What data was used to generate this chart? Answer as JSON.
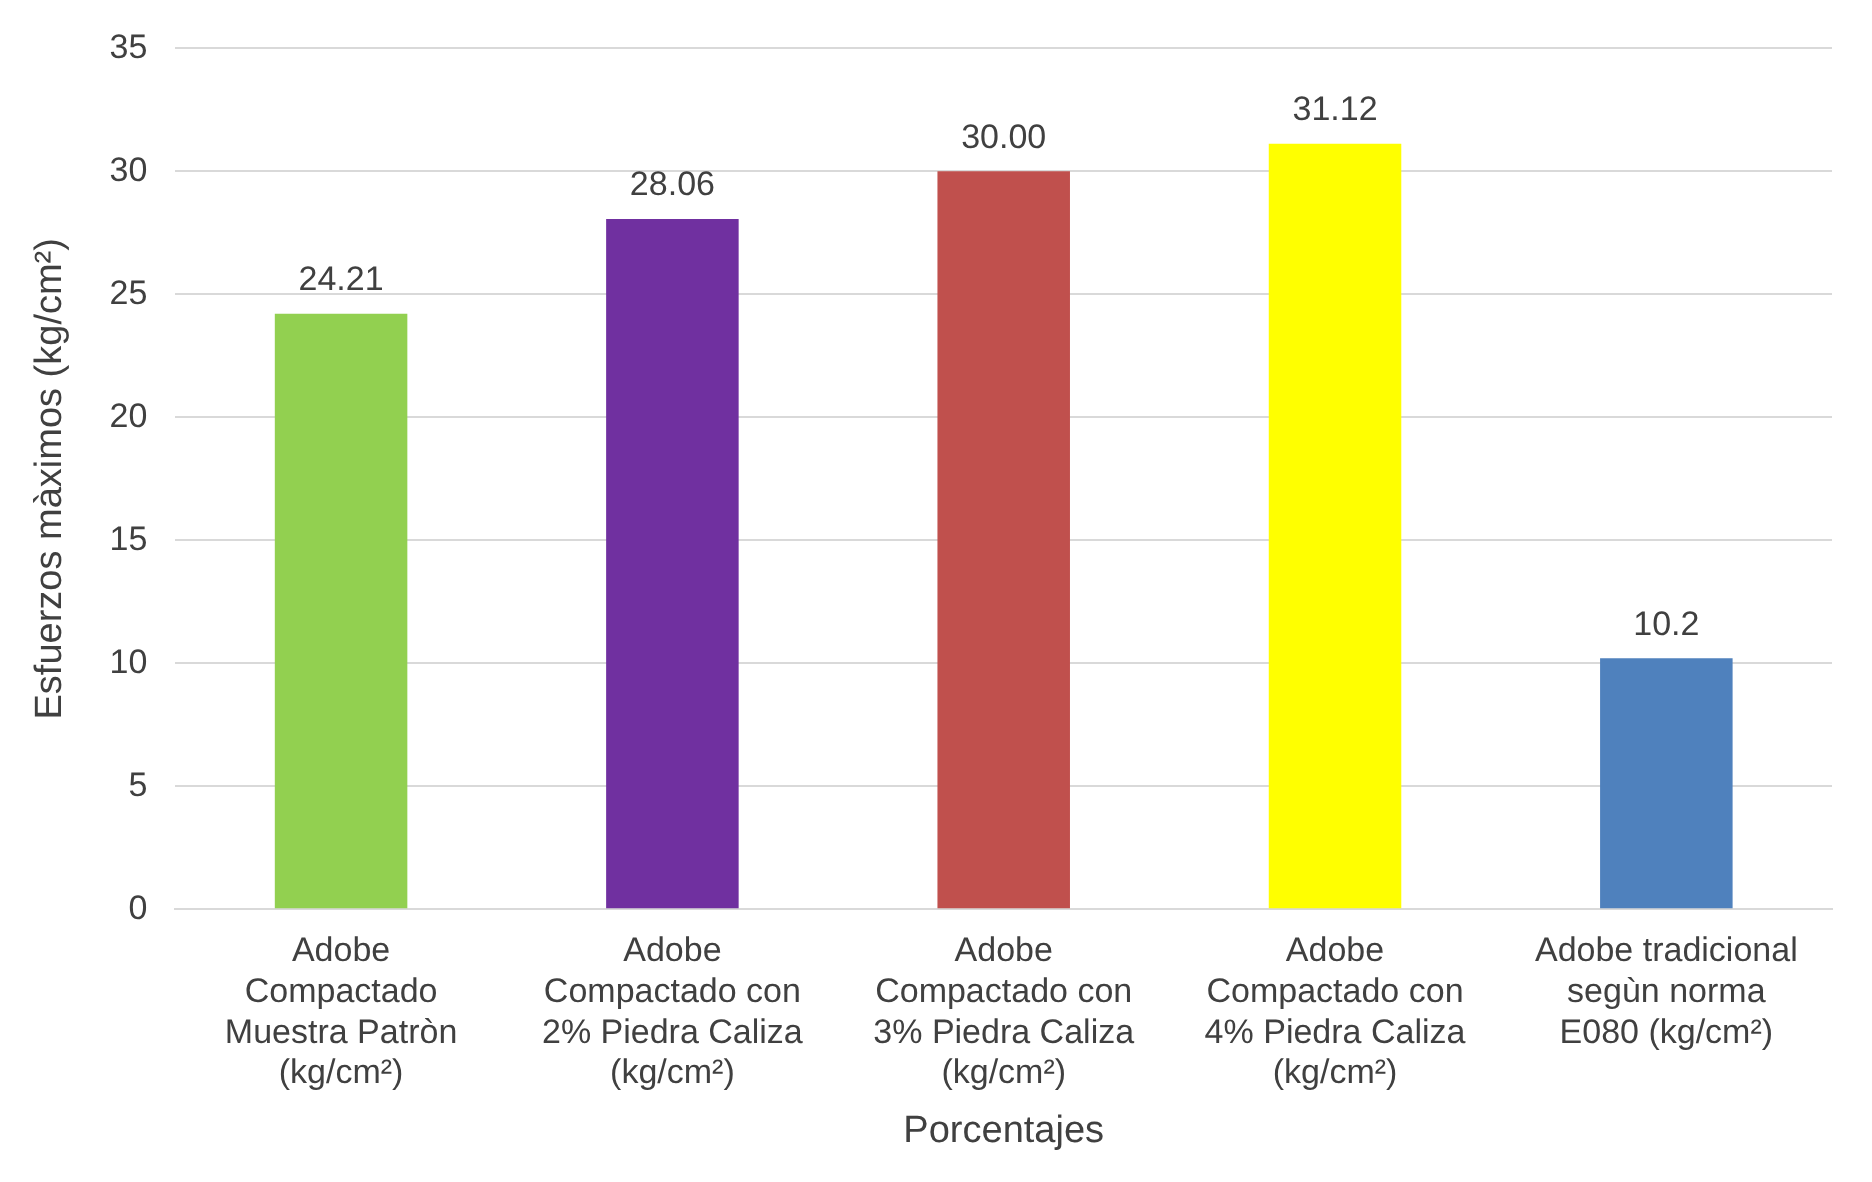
{
  "chart_data": {
    "type": "bar",
    "ylabel": "Esfuerzos màximos (kg/cm²)",
    "xlabel": "Porcentajes",
    "categories": [
      "Adobe Compactado Muestra Patròn (kg/cm²)",
      "Adobe Compactado con 2% Piedra Caliza (kg/cm²)",
      "Adobe Compactado con 3% Piedra Caliza (kg/cm²)",
      "Adobe Compactado con 4% Piedra Caliza (kg/cm²)",
      "Adobe tradicional segùn norma E080 (kg/cm²)"
    ],
    "values": [
      24.21,
      28.06,
      30.0,
      31.12,
      10.2
    ],
    "colors": [
      "#92d050",
      "#7030a0",
      "#c0504d",
      "#ffff00",
      "#4f81bd"
    ],
    "value_labels": [
      "24.21",
      "28.06",
      "30.00",
      "31.12",
      "10.2"
    ],
    "ylim": [
      0,
      35
    ],
    "yticks": [
      0,
      5,
      10,
      15,
      20,
      25,
      30,
      35
    ],
    "grid": "y",
    "legend": false
  }
}
